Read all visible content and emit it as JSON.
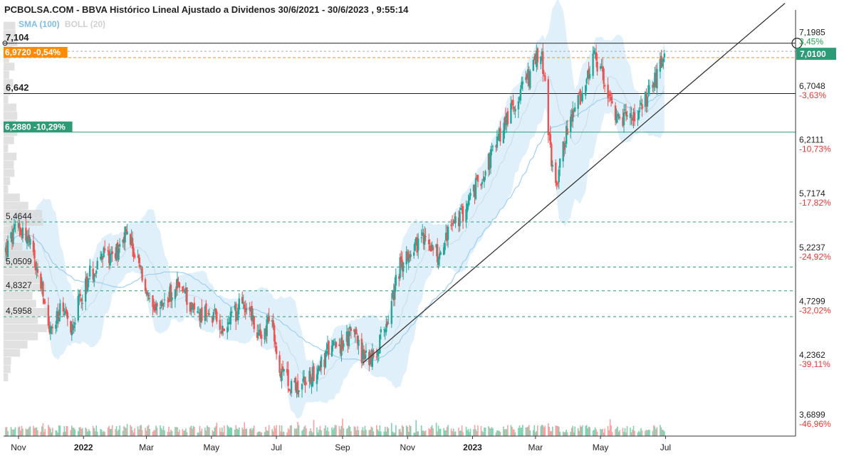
{
  "header": {
    "title": "PCBOLSA.COM - BBVA Histórico Lineal Ajustado a Dividenos 30/6/2021 - 30/6/2023 , 9:55:14",
    "indicators": {
      "sma": "SMA (100)",
      "boll": "BOLL (20)"
    }
  },
  "colors": {
    "up": "#26a69a",
    "down": "#ef5350",
    "band": "#d5ebf8",
    "sma": "#9fcff0",
    "price_tag": "#2e9b77",
    "orange": "#ff8c00",
    "pct_pos": "#22a050",
    "pct_neg": "#e53935"
  },
  "chart_data": {
    "type": "candlestick",
    "title": "PCBOLSA.COM - BBVA Histórico Lineal Ajustado a Dividenos 30/6/2021 - 30/6/2023 , 9:55:14",
    "x_range": [
      "2021-10-18",
      "2023-10-31"
    ],
    "ylim": [
      3.5,
      7.37
    ],
    "x_tick_labels": [
      "Nov",
      "2022",
      "Mar",
      "May",
      "Jul",
      "Sep",
      "Nov",
      "2023",
      "Mar",
      "May",
      "Jul"
    ],
    "x_ticks": [
      "2021-11-01",
      "2022-01-01",
      "2022-03-01",
      "2022-05-01",
      "2022-07-01",
      "2022-09-01",
      "2022-11-01",
      "2023-01-01",
      "2023-03-01",
      "2023-05-01",
      "2023-07-01"
    ],
    "right_axis": [
      {
        "price": "7,1985",
        "pct": "3,45%",
        "sign": "pos"
      },
      {
        "price": "6,7048",
        "pct": "-3,63%",
        "sign": "neg"
      },
      {
        "price": "6,2111",
        "pct": "-10,73%",
        "sign": "neg"
      },
      {
        "price": "5,7174",
        "pct": "-17,82%",
        "sign": "neg"
      },
      {
        "price": "5,2237",
        "pct": "-24,92%",
        "sign": "neg"
      },
      {
        "price": "4,7299",
        "pct": "-32,02%",
        "sign": "neg"
      },
      {
        "price": "4,2362",
        "pct": "-39,11%",
        "sign": "neg"
      },
      {
        "price": "3,6899",
        "pct": "-46,96%",
        "sign": "neg"
      }
    ],
    "current_price": {
      "value": 7.01,
      "label": "7,0100"
    },
    "horizontal_lines": [
      {
        "value": 7.104,
        "label": "7,104",
        "style": "solid-black"
      },
      {
        "value": 6.642,
        "label": "6,642",
        "style": "solid-black"
      },
      {
        "value": 6.972,
        "label": "6,9720 -0,54%",
        "style": "dashed-orange"
      },
      {
        "value": 6.288,
        "label": "6,2880 -10,29%",
        "style": "solid-green"
      },
      {
        "value": 5.4644,
        "label": "5,4644",
        "style": "dashed-green"
      },
      {
        "value": 5.0509,
        "label": "5,0509",
        "style": "dashed-green"
      },
      {
        "value": 4.8327,
        "label": "4,8327",
        "style": "dashed-green"
      },
      {
        "value": 4.5958,
        "label": "4,5958",
        "style": "dashed-green"
      }
    ],
    "trendline": {
      "start": [
        "2022-09-20",
        4.17
      ],
      "end": [
        "2023-10-21",
        7.47
      ]
    },
    "ohlc_anchors": [
      [
        "2021-10-20",
        5.2
      ],
      [
        "2021-11-01",
        5.44
      ],
      [
        "2021-11-10",
        5.3
      ],
      [
        "2021-11-22",
        4.88
      ],
      [
        "2021-12-01",
        4.45
      ],
      [
        "2021-12-10",
        4.63
      ],
      [
        "2021-12-20",
        4.5
      ],
      [
        "2022-01-05",
        4.95
      ],
      [
        "2022-01-20",
        5.15
      ],
      [
        "2022-02-01",
        5.2
      ],
      [
        "2022-02-10",
        5.4
      ],
      [
        "2022-02-24",
        5.0
      ],
      [
        "2022-03-07",
        4.6
      ],
      [
        "2022-03-20",
        4.75
      ],
      [
        "2022-04-01",
        4.9
      ],
      [
        "2022-04-15",
        4.65
      ],
      [
        "2022-05-01",
        4.6
      ],
      [
        "2022-05-15",
        4.5
      ],
      [
        "2022-06-01",
        4.75
      ],
      [
        "2022-06-15",
        4.4
      ],
      [
        "2022-06-25",
        4.6
      ],
      [
        "2022-07-05",
        4.05
      ],
      [
        "2022-07-20",
        3.95
      ],
      [
        "2022-08-01",
        4.05
      ],
      [
        "2022-08-15",
        4.2
      ],
      [
        "2022-08-25",
        4.4
      ],
      [
        "2022-09-01",
        4.3
      ],
      [
        "2022-09-10",
        4.5
      ],
      [
        "2022-09-20",
        4.22
      ],
      [
        "2022-10-01",
        4.2
      ],
      [
        "2022-10-15",
        4.65
      ],
      [
        "2022-10-25",
        5.05
      ],
      [
        "2022-11-05",
        5.25
      ],
      [
        "2022-11-20",
        5.3
      ],
      [
        "2022-12-01",
        5.15
      ],
      [
        "2022-12-10",
        5.4
      ],
      [
        "2022-12-20",
        5.5
      ],
      [
        "2023-01-05",
        5.8
      ],
      [
        "2023-01-20",
        6.1
      ],
      [
        "2023-02-01",
        6.4
      ],
      [
        "2023-02-15",
        6.65
      ],
      [
        "2023-02-28",
        6.9
      ],
      [
        "2023-03-06",
        7.05
      ],
      [
        "2023-03-10",
        6.7
      ],
      [
        "2023-03-15",
        6.1
      ],
      [
        "2023-03-20",
        5.8
      ],
      [
        "2023-03-28",
        6.2
      ],
      [
        "2023-04-05",
        6.45
      ],
      [
        "2023-04-15",
        6.7
      ],
      [
        "2023-04-25",
        6.95
      ],
      [
        "2023-05-05",
        6.75
      ],
      [
        "2023-05-15",
        6.35
      ],
      [
        "2023-05-25",
        6.45
      ],
      [
        "2023-06-05",
        6.4
      ],
      [
        "2023-06-15",
        6.65
      ],
      [
        "2023-06-25",
        6.85
      ],
      [
        "2023-06-30",
        7.01
      ]
    ]
  }
}
